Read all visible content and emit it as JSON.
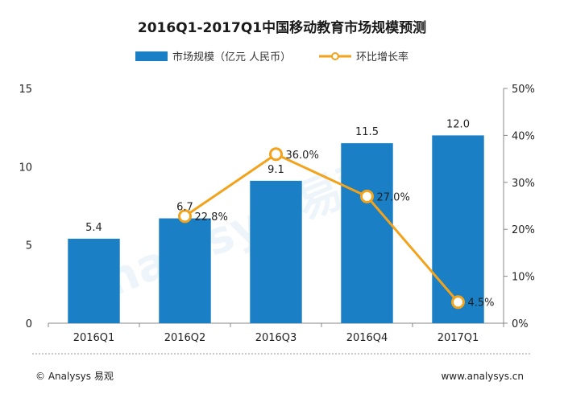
{
  "chart_data": {
    "type": "bar",
    "title": "2016Q1-2017Q1中国移动教育市场规模预测",
    "categories": [
      "2016Q1",
      "2016Q2",
      "2016Q3",
      "2016Q4",
      "2017Q1"
    ],
    "series": [
      {
        "name": "市场规模（亿元 人民币）",
        "type": "bar",
        "axis": "left",
        "values": [
          5.4,
          6.7,
          9.1,
          11.5,
          12.0
        ],
        "labels": [
          "5.4",
          "6.7",
          "9.1",
          "11.5",
          "12.0"
        ]
      },
      {
        "name": "环比增长率",
        "type": "line",
        "axis": "right",
        "values": [
          null,
          22.8,
          36.0,
          27.0,
          4.5
        ],
        "labels": [
          "",
          "22.8%",
          "36.0%",
          "27.0%",
          "4.5%"
        ]
      }
    ],
    "y_left": {
      "ylim": [
        0,
        15
      ],
      "ticks": [
        "0",
        "5",
        "10",
        "15"
      ],
      "tick_values": [
        0,
        5,
        10,
        15
      ]
    },
    "y_right": {
      "ylim": [
        0,
        50
      ],
      "ticks": [
        "0%",
        "10%",
        "20%",
        "30%",
        "40%",
        "50%"
      ],
      "tick_values": [
        0,
        10,
        20,
        30,
        40,
        50
      ]
    },
    "grid": false,
    "legend_position": "top-center"
  },
  "colors": {
    "bar": "#1a7fc4",
    "line": "#f2a21b",
    "marker_fill": "#ffffff",
    "axis": "#888888",
    "footer_rule": "#999999"
  },
  "footer": {
    "copyright": "© Analysys 易观",
    "website": "www.analysys.cn"
  },
  "watermark": {
    "text": "Analysys 易观"
  }
}
